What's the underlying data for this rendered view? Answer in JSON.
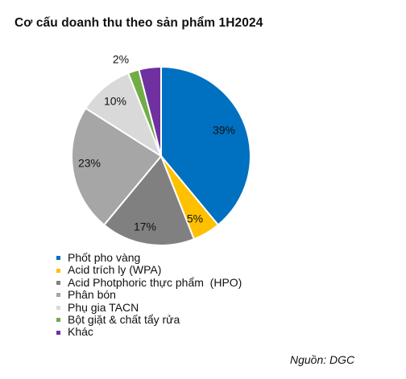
{
  "chart_data": {
    "type": "pie",
    "title": "Cơ cấu doanh thu theo sản phẩm 1H2024",
    "slices": [
      {
        "name": "Phốt pho vàng",
        "value": 39,
        "label": "39%",
        "color": "#0070C0"
      },
      {
        "name": "Acid trích ly (WPA)",
        "value": 5,
        "label": "5%",
        "color": "#FFC000"
      },
      {
        "name": "Acid Photphoric thực phẩm  (HPO)",
        "value": 17,
        "label": "17%",
        "color": "#808080"
      },
      {
        "name": "Phân bón",
        "value": 23,
        "label": "23%",
        "color": "#A6A6A6"
      },
      {
        "name": "Phụ gia TACN",
        "value": 10,
        "label": "10%",
        "color": "#D9D9D9"
      },
      {
        "name": "Bột giặt & chất tẩy rửa",
        "value": 2,
        "label": "2%",
        "color": "#70AD47"
      },
      {
        "name": "Khác",
        "value": 4,
        "label": "",
        "color": "#7030A0"
      }
    ],
    "legend_position": "bottom-left",
    "start_angle": "12 o'clock",
    "direction": "clockwise"
  },
  "source": "Nguồn: DGC"
}
